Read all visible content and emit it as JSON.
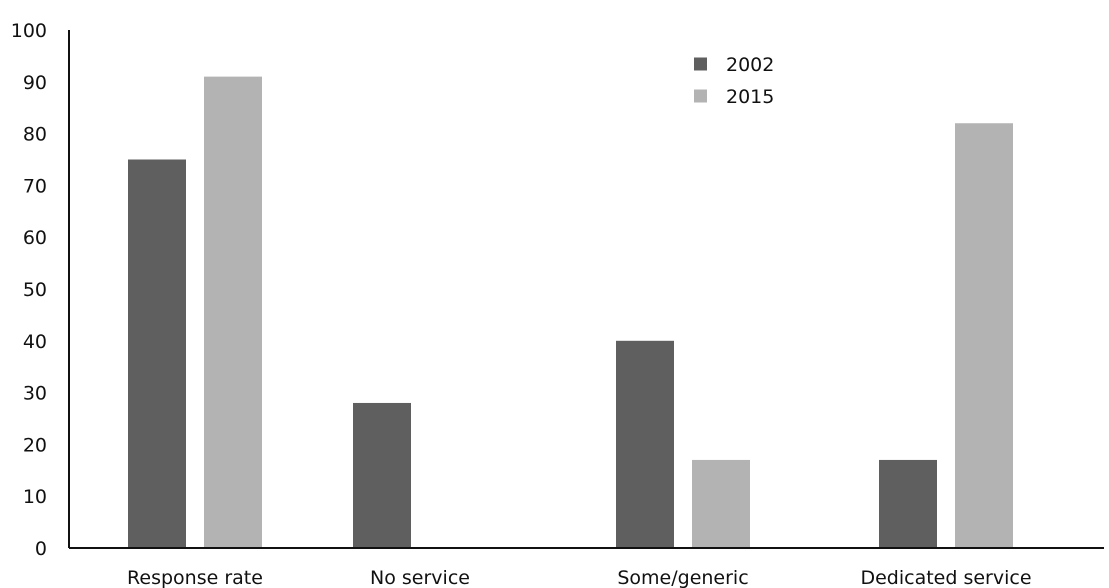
{
  "chart_data": {
    "type": "bar",
    "categories": [
      "Response rate",
      "No service",
      "Some/generic",
      "Dedicated service"
    ],
    "series": [
      {
        "name": "2002",
        "color": "#5f5f5f",
        "values": [
          75,
          28,
          40,
          17
        ]
      },
      {
        "name": "2015",
        "color": "#b3b3b3",
        "values": [
          91,
          0,
          17,
          82
        ]
      }
    ],
    "ylim": [
      0,
      100
    ],
    "yticks": [
      0,
      10,
      20,
      30,
      40,
      50,
      60,
      70,
      80,
      90,
      100
    ],
    "grid": false,
    "legend_position": "top-right"
  }
}
